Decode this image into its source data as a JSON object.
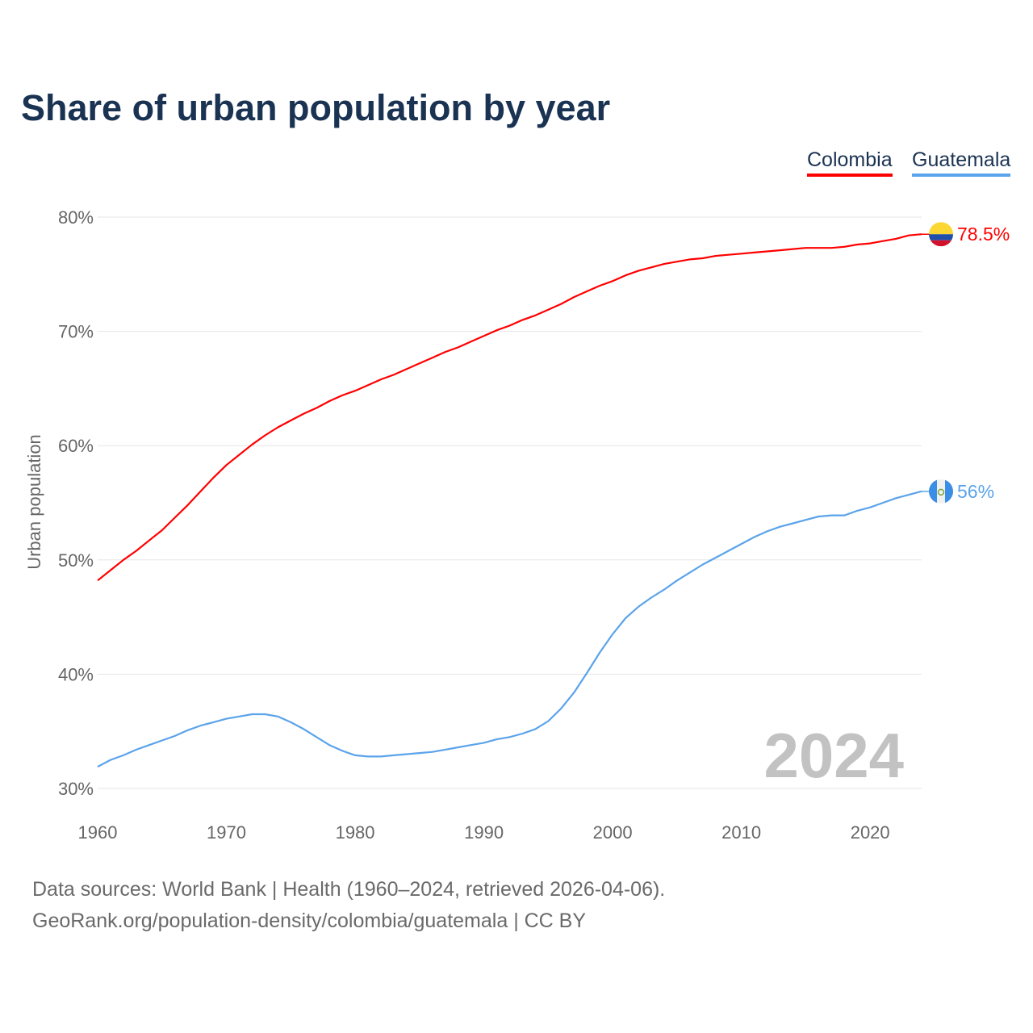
{
  "chart_data": {
    "type": "line",
    "title": "Share of urban population by year",
    "xlabel": "",
    "ylabel": "Urban population",
    "xlim": [
      1960,
      2024
    ],
    "ylim": [
      30,
      80
    ],
    "x_ticks": [
      1960,
      1970,
      1980,
      1990,
      2000,
      2010,
      2020
    ],
    "x_tick_labels": [
      "1960",
      "1970",
      "1980",
      "1990",
      "2000",
      "2010",
      "2020"
    ],
    "y_ticks": [
      30,
      40,
      50,
      60,
      70,
      80
    ],
    "y_tick_labels": [
      "30%",
      "40%",
      "50%",
      "60%",
      "70%",
      "80%"
    ],
    "grid": true,
    "legend_placement": "top-right",
    "year_watermark": "2024",
    "x": [
      1960,
      1961,
      1962,
      1963,
      1964,
      1965,
      1966,
      1967,
      1968,
      1969,
      1970,
      1971,
      1972,
      1973,
      1974,
      1975,
      1976,
      1977,
      1978,
      1979,
      1980,
      1981,
      1982,
      1983,
      1984,
      1985,
      1986,
      1987,
      1988,
      1989,
      1990,
      1991,
      1992,
      1993,
      1994,
      1995,
      1996,
      1997,
      1998,
      1999,
      2000,
      2001,
      2002,
      2003,
      2004,
      2005,
      2006,
      2007,
      2008,
      2009,
      2010,
      2011,
      2012,
      2013,
      2014,
      2015,
      2016,
      2017,
      2018,
      2019,
      2020,
      2021,
      2022,
      2023,
      2024
    ],
    "series": [
      {
        "name": "Colombia",
        "color": "#ff0000",
        "end_label": "78.5%",
        "flag": "colombia-flag",
        "values": [
          48.2,
          49.1,
          50.0,
          50.8,
          51.7,
          52.6,
          53.7,
          54.8,
          56.0,
          57.2,
          58.3,
          59.2,
          60.1,
          60.9,
          61.6,
          62.2,
          62.8,
          63.3,
          63.9,
          64.4,
          64.8,
          65.3,
          65.8,
          66.2,
          66.7,
          67.2,
          67.7,
          68.2,
          68.6,
          69.1,
          69.6,
          70.1,
          70.5,
          71.0,
          71.4,
          71.9,
          72.4,
          73.0,
          73.5,
          74.0,
          74.4,
          74.9,
          75.3,
          75.6,
          75.9,
          76.1,
          76.3,
          76.4,
          76.6,
          76.7,
          76.8,
          76.9,
          77.0,
          77.1,
          77.2,
          77.3,
          77.3,
          77.3,
          77.4,
          77.6,
          77.7,
          77.9,
          78.1,
          78.4,
          78.5
        ]
      },
      {
        "name": "Guatemala",
        "color": "#5ba3ea",
        "end_label": "56%",
        "flag": "guatemala-flag",
        "values": [
          31.9,
          32.5,
          32.9,
          33.4,
          33.8,
          34.2,
          34.6,
          35.1,
          35.5,
          35.8,
          36.1,
          36.3,
          36.5,
          36.5,
          36.3,
          35.8,
          35.2,
          34.5,
          33.8,
          33.3,
          32.9,
          32.8,
          32.8,
          32.9,
          33.0,
          33.1,
          33.2,
          33.4,
          33.6,
          33.8,
          34.0,
          34.3,
          34.5,
          34.8,
          35.2,
          35.9,
          37.0,
          38.4,
          40.1,
          41.9,
          43.5,
          44.9,
          45.9,
          46.7,
          47.4,
          48.2,
          48.9,
          49.6,
          50.2,
          50.8,
          51.4,
          52.0,
          52.5,
          52.9,
          53.2,
          53.5,
          53.8,
          53.9,
          53.9,
          54.3,
          54.6,
          55.0,
          55.4,
          55.7,
          56.0
        ]
      }
    ]
  },
  "footer": {
    "line1": "Data sources: World Bank | Health (1960–2024, retrieved 2026-04-06).",
    "line2": "GeoRank.org/population-density/colombia/guatemala | CC BY"
  }
}
